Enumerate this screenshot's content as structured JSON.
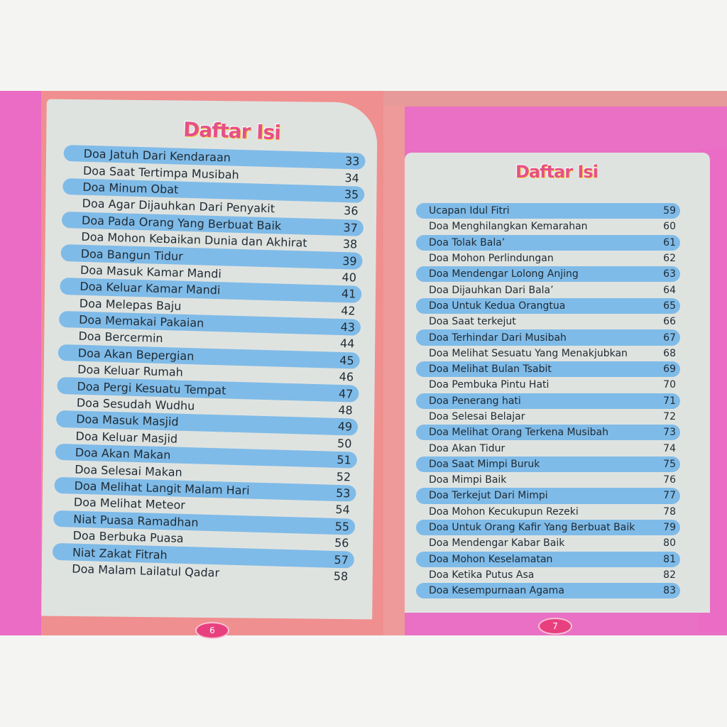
{
  "left_page": {
    "title": "Daftar Isi",
    "page_number": "6",
    "entries": [
      {
        "label": "Doa Jatuh Dari Kendaraan",
        "page": "33"
      },
      {
        "label": "Doa Saat Tertimpa Musibah",
        "page": "34"
      },
      {
        "label": "Doa Minum Obat",
        "page": "35"
      },
      {
        "label": "Doa Agar Dijauhkan Dari Penyakit",
        "page": "36"
      },
      {
        "label": "Doa Pada Orang Yang Berbuat Baik",
        "page": "37"
      },
      {
        "label": "Doa Mohon Kebaikan Dunia dan Akhirat",
        "page": "38"
      },
      {
        "label": "Doa Bangun Tidur",
        "page": "39"
      },
      {
        "label": "Doa Masuk Kamar Mandi",
        "page": "40"
      },
      {
        "label": "Doa Keluar Kamar Mandi",
        "page": "41"
      },
      {
        "label": "Doa Melepas Baju",
        "page": "42"
      },
      {
        "label": "Doa Memakai Pakaian",
        "page": "43"
      },
      {
        "label": "Doa Bercermin",
        "page": "44"
      },
      {
        "label": "Doa Akan Bepergian",
        "page": "45"
      },
      {
        "label": "Doa Keluar Rumah",
        "page": "46"
      },
      {
        "label": "Doa Pergi Kesuatu Tempat",
        "page": "47"
      },
      {
        "label": "Doa Sesudah Wudhu",
        "page": "48"
      },
      {
        "label": "Doa Masuk Masjid",
        "page": "49"
      },
      {
        "label": "Doa Keluar Masjid",
        "page": "50"
      },
      {
        "label": "Doa Akan Makan",
        "page": "51"
      },
      {
        "label": "Doa Selesai Makan",
        "page": "52"
      },
      {
        "label": "Doa Melihat Langit Malam Hari",
        "page": "53"
      },
      {
        "label": "Doa Melihat Meteor",
        "page": "54"
      },
      {
        "label": "Niat Puasa Ramadhan",
        "page": "55"
      },
      {
        "label": "Doa Berbuka Puasa",
        "page": "56"
      },
      {
        "label": "Niat Zakat Fitrah",
        "page": "57"
      },
      {
        "label": "Doa Malam Lailatul Qadar",
        "page": "58"
      }
    ]
  },
  "right_page": {
    "title": "Daftar Isi",
    "page_number": "7",
    "entries": [
      {
        "label": "Ucapan Idul Fitri",
        "page": "59"
      },
      {
        "label": "Doa Menghilangkan Kemarahan",
        "page": "60"
      },
      {
        "label": "Doa Tolak Bala’",
        "page": "61"
      },
      {
        "label": "Doa Mohon Perlindungan",
        "page": "62"
      },
      {
        "label": "Doa Mendengar Lolong Anjing",
        "page": "63"
      },
      {
        "label": "Doa Dijauhkan Dari Bala’",
        "page": "64"
      },
      {
        "label": "Doa Untuk Kedua Orangtua",
        "page": "65"
      },
      {
        "label": "Doa Saat terkejut",
        "page": "66"
      },
      {
        "label": "Doa Terhindar Dari Musibah",
        "page": "67"
      },
      {
        "label": "Doa Melihat Sesuatu Yang Menakjubkan",
        "page": "68"
      },
      {
        "label": "Doa Melihat Bulan Tsabit",
        "page": "69"
      },
      {
        "label": "Doa Pembuka Pintu Hati",
        "page": "70"
      },
      {
        "label": "Doa Penerang hati",
        "page": "71"
      },
      {
        "label": "Doa Selesai Belajar",
        "page": "72"
      },
      {
        "label": "Doa Melihat Orang Terkena Musibah",
        "page": "73"
      },
      {
        "label": "Doa Akan Tidur",
        "page": "74"
      },
      {
        "label": "Doa Saat Mimpi Buruk",
        "page": "75"
      },
      {
        "label": "Doa Mimpi Baik",
        "page": "76"
      },
      {
        "label": "Doa Terkejut Dari Mimpi",
        "page": "77"
      },
      {
        "label": "Doa Mohon Kecukupun Rezeki",
        "page": "78"
      },
      {
        "label": "Doa Untuk Orang Kafir Yang Berbuat Baik",
        "page": "79"
      },
      {
        "label": "Doa Mendengar Kabar Baik",
        "page": "80"
      },
      {
        "label": "Doa Mohon Keselamatan",
        "page": "81"
      },
      {
        "label": "Doa Ketika Putus Asa",
        "page": "82"
      },
      {
        "label": "Doa Kesempurnaan Agama",
        "page": "83"
      }
    ]
  },
  "colors": {
    "highlight": "#7fbbe8",
    "title": "#e64f8a",
    "border_pink": "#ea6cc4",
    "frame_salmon": "#f08f8f",
    "panel": "#dfe3e0"
  }
}
